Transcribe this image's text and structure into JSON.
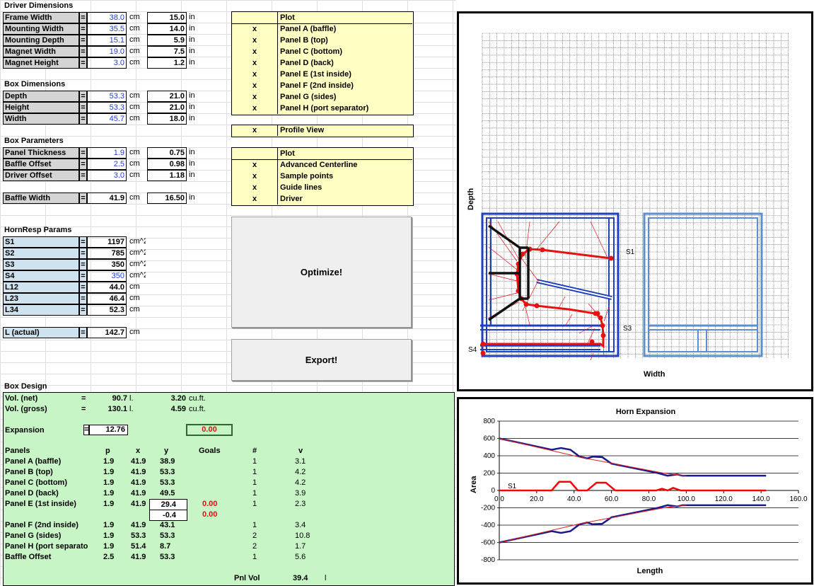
{
  "driver": {
    "title": "Driver Dimensions",
    "rows": [
      {
        "label": "Frame Width",
        "eq": "=",
        "cm": "38.0",
        "cm_unit": "cm",
        "in": "15.0",
        "in_unit": "in"
      },
      {
        "label": "Mounting Width",
        "eq": "=",
        "cm": "35.5",
        "cm_unit": "cm",
        "in": "14.0",
        "in_unit": "in"
      },
      {
        "label": "Mounting Depth",
        "eq": "=",
        "cm": "15.1",
        "cm_unit": "cm",
        "in": "5.9",
        "in_unit": "in"
      },
      {
        "label": "Magnet Width",
        "eq": "=",
        "cm": "19.0",
        "cm_unit": "cm",
        "in": "7.5",
        "in_unit": "in"
      },
      {
        "label": "Magnet Height",
        "eq": "=",
        "cm": "3.0",
        "cm_unit": "cm",
        "in": "1.2",
        "in_unit": "in"
      }
    ]
  },
  "box_dims": {
    "title": "Box Dimensions",
    "rows": [
      {
        "label": "Depth",
        "eq": "=",
        "cm": "53.3",
        "cm_unit": "cm",
        "in": "21.0",
        "in_unit": "in"
      },
      {
        "label": "Height",
        "eq": "=",
        "cm": "53.3",
        "cm_unit": "cm",
        "in": "21.0",
        "in_unit": "in"
      },
      {
        "label": "Width",
        "eq": "=",
        "cm": "45.7",
        "cm_unit": "cm",
        "in": "18.0",
        "in_unit": "in"
      }
    ]
  },
  "box_params": {
    "title": "Box Parameters",
    "rows": [
      {
        "label": "Panel Thickness",
        "eq": "=",
        "cm": "1.9",
        "cm_unit": "cm",
        "in": "0.75",
        "in_unit": "in"
      },
      {
        "label": "Baffle Offset",
        "eq": "=",
        "cm": "2.5",
        "cm_unit": "cm",
        "in": "0.98",
        "in_unit": "in"
      },
      {
        "label": "Driver Offset",
        "eq": "=",
        "cm": "3.0",
        "cm_unit": "cm",
        "in": "1.18",
        "in_unit": "in"
      }
    ],
    "baffle": {
      "label": "Baffle Width",
      "eq": "=",
      "cm": "41.9",
      "cm_unit": "cm",
      "in": "16.50",
      "in_unit": "in"
    }
  },
  "hornresp": {
    "title": "HornResp Params",
    "rows": [
      {
        "label": "S1",
        "eq": "=",
        "val": "1197",
        "unit": "cm^2"
      },
      {
        "label": "S2",
        "eq": "=",
        "val": "785",
        "unit": "cm^2"
      },
      {
        "label": "S3",
        "eq": "=",
        "val": "350",
        "unit": "cm^2"
      },
      {
        "label": "S4",
        "eq": "=",
        "val": "350",
        "unit": "cm^2"
      },
      {
        "label": "L12",
        "eq": "=",
        "val": "44.0",
        "unit": "cm"
      },
      {
        "label": "L23",
        "eq": "=",
        "val": "46.4",
        "unit": "cm"
      },
      {
        "label": "L34",
        "eq": "=",
        "val": "52.3",
        "unit": "cm"
      }
    ],
    "actual": {
      "label": "L (actual)",
      "eq": "=",
      "val": "142.7",
      "unit": "cm"
    }
  },
  "plot_panel_1": {
    "header": "Plot",
    "rows": [
      {
        "x": "x",
        "label": "Panel A (baffle)"
      },
      {
        "x": "x",
        "label": "Panel B (top)"
      },
      {
        "x": "x",
        "label": "Panel C (bottom)"
      },
      {
        "x": "x",
        "label": "Panel D (back)"
      },
      {
        "x": "x",
        "label": "Panel E (1st inside)"
      },
      {
        "x": "x",
        "label": "Panel F (2nd inside)"
      },
      {
        "x": "x",
        "label": "Panel G (sides)"
      },
      {
        "x": "x",
        "label": "Panel H (port separator)"
      }
    ]
  },
  "profile_view": {
    "x": "x",
    "label": "Profile View"
  },
  "plot_panel_2": {
    "header": "Plot",
    "rows": [
      {
        "x": "x",
        "label": "Advanced Centerline"
      },
      {
        "x": "x",
        "label": "Sample points"
      },
      {
        "x": "x",
        "label": "Guide lines"
      },
      {
        "x": "x",
        "label": "Driver"
      }
    ]
  },
  "buttons": {
    "optimize": "Optimize!",
    "export": "Export!"
  },
  "box_design": {
    "title": "Box Design",
    "vol_net": {
      "label": "Vol. (net)",
      "eq": "=",
      "l": "90.7",
      "l_unit": "l.",
      "cuft": "3.20",
      "cuft_unit": "cu.ft."
    },
    "vol_gross": {
      "label": "Vol. (gross)",
      "eq": "=",
      "l": "130.1",
      "l_unit": "l.",
      "cuft": "4.59",
      "cuft_unit": "cu.ft."
    },
    "expansion": {
      "label": "Expansion",
      "eq": "=",
      "value": "12.76",
      "goal": "0.00"
    },
    "headers": {
      "panels": "Panels",
      "p": "p",
      "x": "x",
      "y": "y",
      "goals": "Goals",
      "num": "#",
      "v": "v"
    },
    "panels": [
      {
        "name": "Panel A (baffle)",
        "p": "1.9",
        "x": "41.9",
        "y": "38.9",
        "goal": "",
        "num": "1",
        "v": "3.1"
      },
      {
        "name": "Panel B (top)",
        "p": "1.9",
        "x": "41.9",
        "y": "53.3",
        "goal": "",
        "num": "1",
        "v": "4.2"
      },
      {
        "name": "Panel C (bottom)",
        "p": "1.9",
        "x": "41.9",
        "y": "53.3",
        "goal": "",
        "num": "1",
        "v": "4.2"
      },
      {
        "name": "Panel D (back)",
        "p": "1.9",
        "x": "41.9",
        "y": "49.5",
        "goal": "",
        "num": "1",
        "v": "3.9"
      },
      {
        "name": "Panel E (1st inside)",
        "p": "1.9",
        "x": "41.9",
        "y": "29.4",
        "goal": "0.00",
        "num": "1",
        "v": "2.3"
      }
    ],
    "panel_e_extra": {
      "y": "-0.4",
      "goal": "0.00"
    },
    "panels2": [
      {
        "name": "Panel F (2nd inside)",
        "p": "1.9",
        "x": "41.9",
        "y": "43.1",
        "num": "1",
        "v": "3.4"
      },
      {
        "name": "Panel G (sides)",
        "p": "1.9",
        "x": "53.3",
        "y": "53.3",
        "num": "2",
        "v": "10.8"
      },
      {
        "name": "Panel H (port separato",
        "p": "1.9",
        "x": "51.4",
        "y": "8.7",
        "num": "2",
        "v": "1.7"
      },
      {
        "name": "Baffle Offset",
        "p": "2.5",
        "x": "41.9",
        "y": "53.3",
        "num": "1",
        "v": "5.6"
      }
    ],
    "pnl_vol": {
      "label": "Pnl Vol",
      "value": "39.4",
      "unit": "l"
    }
  },
  "profile_chart": {
    "ylabel": "Depth",
    "xlabel": "Width",
    "labels": {
      "s1": "S1",
      "s3": "S3",
      "s4": "S4"
    },
    "colors": {
      "box": "#1f3fbf",
      "side": "#5b8fd0",
      "path": "#e81010",
      "driver": "#111111"
    }
  },
  "chart_data": {
    "type": "line",
    "title": "Horn Expansion",
    "xlabel": "Length",
    "ylabel": "Area",
    "xlim": [
      0,
      160
    ],
    "ylim": [
      -800,
      800
    ],
    "x_ticks": [
      "0.0",
      "20.0",
      "40.0",
      "60.0",
      "80.0",
      "100.0",
      "120.0",
      "140.0",
      "160.0"
    ],
    "y_ticks": [
      "800",
      "600",
      "400",
      "200",
      "0",
      "-200",
      "-400",
      "-600",
      "-800"
    ],
    "annotation": "S1",
    "series": [
      {
        "color": "#1a1a8c",
        "x": [
          0,
          28,
          33,
          38,
          43,
          47,
          50,
          55,
          60,
          85,
          90,
          95,
          98,
          100,
          142.7
        ],
        "y": [
          600,
          470,
          490,
          470,
          390,
          370,
          390,
          385,
          310,
          200,
          170,
          185,
          170,
          170,
          170
        ]
      },
      {
        "color": "#1a1a8c",
        "x": [
          0,
          28,
          33,
          38,
          43,
          47,
          50,
          55,
          60,
          85,
          90,
          95,
          98,
          100,
          142.7
        ],
        "y": [
          -600,
          -470,
          -490,
          -470,
          -390,
          -370,
          -390,
          -385,
          -310,
          -200,
          -170,
          -185,
          -170,
          -170,
          -170
        ]
      },
      {
        "color": "#e02020",
        "x": [
          0,
          44,
          88,
          100
        ],
        "y": [
          600,
          380,
          200,
          170
        ]
      },
      {
        "color": "#e02020",
        "x": [
          0,
          44,
          88,
          100
        ],
        "y": [
          -600,
          -380,
          -200,
          -170
        ]
      },
      {
        "color": "#ff0000",
        "x": [
          0,
          28,
          32,
          38,
          42,
          47,
          52,
          57,
          62,
          84,
          87,
          90,
          93,
          97,
          100,
          142.7
        ],
        "y": [
          0,
          0,
          100,
          100,
          0,
          0,
          90,
          90,
          0,
          0,
          20,
          0,
          30,
          0,
          0,
          0
        ]
      }
    ]
  }
}
